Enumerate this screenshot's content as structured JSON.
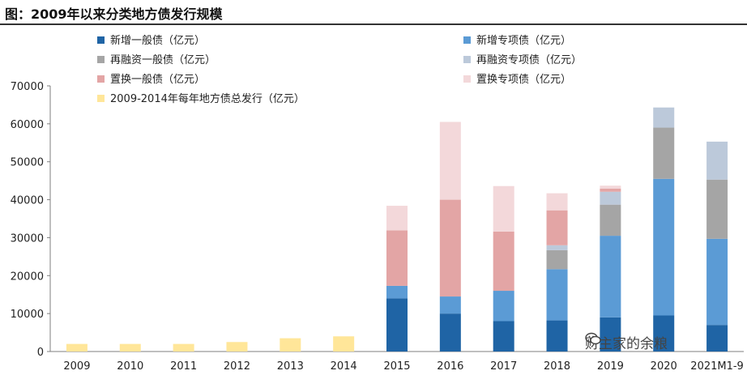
{
  "title": "图：2009年以来分类地方债发行规模",
  "watermark": "财主家的余粮",
  "chart_data": {
    "type": "bar",
    "stacked": true,
    "categories": [
      "2009",
      "2010",
      "2011",
      "2012",
      "2013",
      "2014",
      "2015",
      "2016",
      "2017",
      "2018",
      "2019",
      "2020",
      "2021M1-9"
    ],
    "ylim": [
      0,
      70000
    ],
    "yticks": [
      0,
      10000,
      20000,
      30000,
      40000,
      50000,
      60000,
      70000
    ],
    "grid": false,
    "legend_position": "top",
    "series": [
      {
        "name": "新增一般债（亿元）",
        "color": "#1f64a5",
        "values": [
          null,
          null,
          null,
          null,
          null,
          null,
          14000,
          10000,
          8000,
          8200,
          9000,
          9500,
          7000
        ]
      },
      {
        "name": "新增专项债（亿元）",
        "color": "#5b9bd5",
        "values": [
          null,
          null,
          null,
          null,
          null,
          null,
          3300,
          4500,
          8000,
          13500,
          21500,
          36000,
          22700
        ]
      },
      {
        "name": "再融资一般债（亿元）",
        "color": "#a5a5a5",
        "values": [
          null,
          null,
          null,
          null,
          null,
          null,
          0,
          0,
          0,
          5000,
          8200,
          13500,
          15600
        ]
      },
      {
        "name": "再融资专项债（亿元）",
        "color": "#bcc9da",
        "values": [
          null,
          null,
          null,
          null,
          null,
          null,
          0,
          0,
          0,
          1300,
          3400,
          5300,
          10000
        ]
      },
      {
        "name": "置换一般债（亿元）",
        "color": "#e3a5a5",
        "values": [
          null,
          null,
          null,
          null,
          null,
          null,
          14600,
          25500,
          15600,
          9200,
          800,
          0,
          0
        ]
      },
      {
        "name": "置换专项债（亿元）",
        "color": "#f3d8da",
        "values": [
          null,
          null,
          null,
          null,
          null,
          null,
          6500,
          20500,
          12000,
          4500,
          800,
          0,
          0
        ]
      },
      {
        "name": "2009-2014年每年地方债总发行（亿元）",
        "color": "#ffe699",
        "values": [
          2000,
          2000,
          2000,
          2500,
          3500,
          4000,
          null,
          null,
          null,
          null,
          null,
          null,
          null
        ]
      }
    ]
  }
}
